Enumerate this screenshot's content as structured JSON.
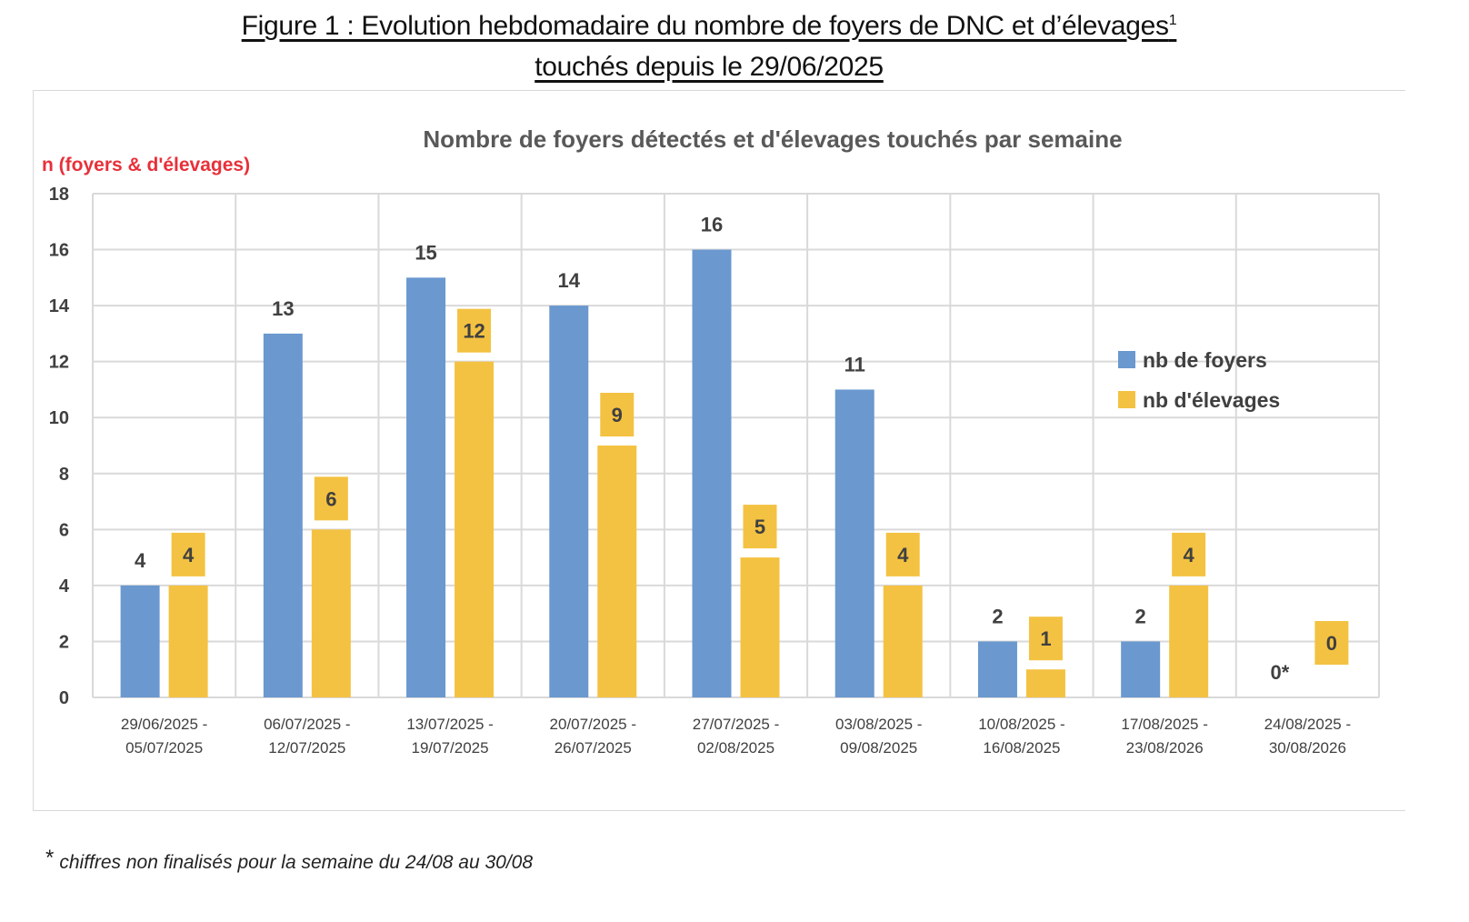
{
  "figure": {
    "title_line1": "Figure 1 : Evolution hebdomadaire du nombre de foyers de DNC et d’élevages",
    "title_sup": "1",
    "title_line2": "touchés depuis le 29/06/2025"
  },
  "footnote": {
    "marker": "*",
    "text": "chiffres non finalisés pour la semaine du 24/08 au 30/08"
  },
  "chart_data": {
    "type": "bar",
    "title": "Nombre de foyers détectés et d'élevages touchés par semaine",
    "xlabel": "",
    "ylabel": "n (foyers & d'élevages)",
    "ylim": [
      0,
      18
    ],
    "yticks": [
      0,
      2,
      4,
      6,
      8,
      10,
      12,
      14,
      16,
      18
    ],
    "grid": true,
    "legend_position": "right",
    "categories": [
      [
        "29/06/2025 -",
        "05/07/2025"
      ],
      [
        "06/07/2025 -",
        "12/07/2025"
      ],
      [
        "13/07/2025 -",
        "19/07/2025"
      ],
      [
        "20/07/2025 -",
        "26/07/2025"
      ],
      [
        "27/07/2025 -",
        "02/08/2025"
      ],
      [
        "03/08/2025 -",
        "09/08/2025"
      ],
      [
        "10/08/2025 -",
        "16/08/2025"
      ],
      [
        "17/08/2025 -",
        "23/08/2026"
      ],
      [
        "24/08/2025 -",
        "30/08/2026"
      ]
    ],
    "series": [
      {
        "name": "nb de foyers",
        "color": "#6a98cf",
        "values": [
          4,
          13,
          15,
          14,
          16,
          11,
          2,
          2,
          0
        ],
        "labels": [
          "4",
          "13",
          "15",
          "14",
          "16",
          "11",
          "2",
          "2",
          "0*"
        ]
      },
      {
        "name": "nb  d'élevages",
        "color": "#f4c242",
        "values": [
          4,
          6,
          12,
          9,
          5,
          4,
          1,
          4,
          0
        ],
        "labels": [
          "4",
          "6",
          "12",
          "9",
          "5",
          "4",
          "1",
          "4",
          "0"
        ]
      }
    ],
    "colors": {
      "ylabel": "#e8303a",
      "title": "#595959",
      "ticks": "#404040",
      "grid": "#d9d9d9"
    }
  }
}
